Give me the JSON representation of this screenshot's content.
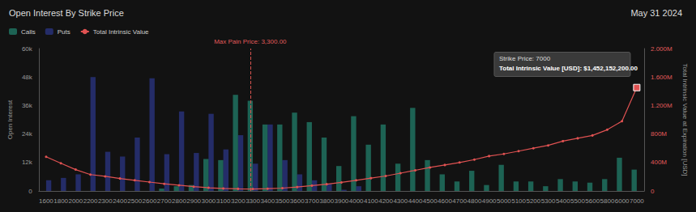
{
  "chart_data": {
    "type": "bar",
    "title": "Open Interest By Strike Price",
    "subtitle": "May 31 2024",
    "categories": [
      1600,
      1800,
      2000,
      2200,
      2300,
      2400,
      2500,
      2600,
      2700,
      2800,
      2900,
      3000,
      3100,
      3200,
      3300,
      3400,
      3500,
      3600,
      3700,
      3800,
      3900,
      4000,
      4100,
      4200,
      4300,
      4400,
      4500,
      4600,
      4700,
      4800,
      4900,
      5000,
      5100,
      5200,
      5300,
      5400,
      5500,
      5600,
      5800,
      6000,
      7000
    ],
    "series": [
      {
        "name": "Calls",
        "type": "bar",
        "color": "#2ed3b0",
        "values": [
          0,
          0,
          0,
          0,
          0,
          0,
          0,
          0,
          1000,
          2000,
          2500,
          13500,
          13000,
          40500,
          38000,
          28000,
          28000,
          33000,
          29000,
          22500,
          10500,
          31500,
          19500,
          28000,
          11500,
          35000,
          13000,
          7000,
          4000,
          8500,
          2500,
          11000,
          4000,
          4000,
          2000,
          5000,
          4000,
          3500,
          5000,
          14000,
          9000
        ]
      },
      {
        "name": "Puts",
        "type": "bar",
        "color": "#3f51e0",
        "values": [
          4500,
          5500,
          7000,
          48000,
          16500,
          14500,
          22500,
          47500,
          15500,
          33500,
          16000,
          32500,
          17500,
          23500,
          11500,
          28000,
          13000,
          7000,
          4500,
          3000,
          500,
          2000,
          0,
          0,
          0,
          0,
          0,
          0,
          0,
          0,
          0,
          0,
          0,
          0,
          0,
          0,
          0,
          0,
          0,
          0,
          0
        ]
      },
      {
        "name": "Total Intrinsic Value",
        "type": "line",
        "axis": "y2",
        "color": "#e05252",
        "marker": "circle",
        "values": [
          480000000,
          390000000,
          300000000,
          230000000,
          205000000,
          175000000,
          150000000,
          125000000,
          100000000,
          80000000,
          60000000,
          45000000,
          35000000,
          30000000,
          28000000,
          32000000,
          40000000,
          55000000,
          75000000,
          95000000,
          120000000,
          150000000,
          180000000,
          210000000,
          250000000,
          290000000,
          330000000,
          365000000,
          400000000,
          440000000,
          490000000,
          520000000,
          560000000,
          600000000,
          640000000,
          700000000,
          740000000,
          780000000,
          860000000,
          980000000,
          1452152200
        ]
      }
    ],
    "x_label": "",
    "y_label": "Open Interest",
    "y2_label": "Total Intrinsic Value at Expiration [USD]",
    "ylim": [
      0,
      60000
    ],
    "yticks": [
      0,
      {
        "value": 12000,
        "label": "12k"
      },
      {
        "value": 24000,
        "label": "24k"
      },
      {
        "value": 36000,
        "label": "36k"
      },
      {
        "value": 48000,
        "label": "48k"
      },
      {
        "value": 60000,
        "label": "60k"
      }
    ],
    "y2lim": [
      0,
      2000000000
    ],
    "y2ticks": [
      0,
      {
        "value": 400000000,
        "label": "400M"
      },
      {
        "value": 800000000,
        "label": "800M"
      },
      {
        "value": 1200000000,
        "label": "1.200M"
      },
      {
        "value": 1600000000,
        "label": "1.600M"
      },
      {
        "value": 2000000000,
        "label": "2.000M"
      }
    ],
    "max_pain": {
      "category": 3300,
      "label": "Max Pain Price: 3,300.00"
    },
    "annotation": {
      "x": 7000,
      "lines": [
        "Strike Price: 7000",
        "Total Intrinsic Value [USD]: $1,452,152,200.00"
      ]
    },
    "legend": "top-left",
    "grid": false
  }
}
